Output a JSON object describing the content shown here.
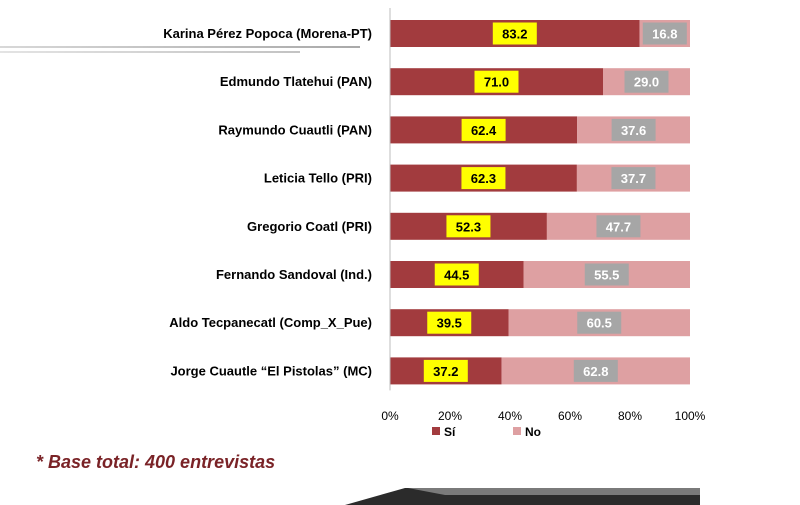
{
  "chart_data": {
    "type": "bar",
    "orientation": "horizontal",
    "stacked": true,
    "percent": true,
    "categories": [
      "Karina Pérez Popoca (Morena-PT)",
      "Edmundo Tlatehui (PAN)",
      "Raymundo Cuautli  (PAN)",
      "Leticia Tello (PRI)",
      "Gregorio Coatl (PRI)",
      "Fernando Sandoval (Ind.)",
      "Aldo Tecpanecatl (Comp_X_Pue)",
      "Jorge Cuautle “El Pistolas” (MC)"
    ],
    "series": [
      {
        "name": "Sí",
        "color": "#a23b3e",
        "values": [
          83.2,
          71.0,
          62.4,
          62.3,
          52.3,
          44.5,
          39.5,
          37.2
        ]
      },
      {
        "name": "No",
        "color": "#dea0a2",
        "values": [
          16.8,
          29.0,
          37.6,
          37.7,
          47.7,
          55.5,
          60.5,
          62.8
        ]
      }
    ],
    "data_labels": {
      "Sí": [
        "83.2",
        "71.0",
        "62.4",
        "62.3",
        "52.3",
        "44.5",
        "39.5",
        "37.2"
      ],
      "No": [
        "16.8",
        "29.0",
        "37.6",
        "37.7",
        "47.7",
        "55.5",
        "60.5",
        "62.8"
      ]
    },
    "si_label_bg": "#ffff00",
    "no_label_bg": "#a6a6a6",
    "xlim": [
      0,
      100
    ],
    "xticks": [
      "0%",
      "20%",
      "40%",
      "60%",
      "80%",
      "100%"
    ],
    "legend_position": "bottom",
    "grid": false
  },
  "footnote": "* Base total: 400 entrevistas"
}
